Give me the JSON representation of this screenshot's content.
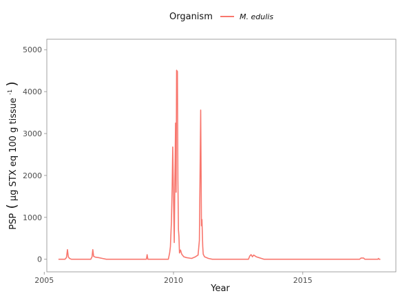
{
  "chart_data": {
    "type": "line",
    "xlabel": "Year",
    "ylabel": "PSP (µg STX eq 100 g tissue⁻¹)",
    "ylabel_main": "PSP",
    "ylabel_unit": "µg STX eq 100 g tissue",
    "ylabel_exp": "-1",
    "xlim": [
      2005.1,
      2018.6
    ],
    "ylim": [
      -300,
      5250
    ],
    "x_ticks": [
      2005,
      2010,
      2015
    ],
    "y_ticks": [
      0,
      1000,
      2000,
      3000,
      4000,
      5000
    ],
    "grid": false,
    "legend": {
      "title": "Organism",
      "position": "top"
    },
    "series": [
      {
        "name": "M. edulis",
        "color": "#F8766D",
        "points": [
          [
            2005.55,
            0
          ],
          [
            2005.8,
            0
          ],
          [
            2005.86,
            40
          ],
          [
            2005.9,
            230
          ],
          [
            2005.93,
            60
          ],
          [
            2005.98,
            20
          ],
          [
            2006.05,
            0
          ],
          [
            2006.8,
            0
          ],
          [
            2006.85,
            60
          ],
          [
            2006.88,
            230
          ],
          [
            2006.91,
            70
          ],
          [
            2006.98,
            50
          ],
          [
            2007.1,
            40
          ],
          [
            2007.25,
            20
          ],
          [
            2007.4,
            0
          ],
          [
            2008.95,
            0
          ],
          [
            2008.98,
            110
          ],
          [
            2009.01,
            0
          ],
          [
            2009.8,
            0
          ],
          [
            2009.85,
            150
          ],
          [
            2009.88,
            300
          ],
          [
            2009.92,
            900
          ],
          [
            2009.95,
            1750
          ],
          [
            2009.97,
            2680
          ],
          [
            2010.0,
            1500
          ],
          [
            2010.03,
            400
          ],
          [
            2010.05,
            1700
          ],
          [
            2010.08,
            3250
          ],
          [
            2010.1,
            1600
          ],
          [
            2010.12,
            4510
          ],
          [
            2010.15,
            4480
          ],
          [
            2010.17,
            1900
          ],
          [
            2010.19,
            700
          ],
          [
            2010.21,
            550
          ],
          [
            2010.23,
            150
          ],
          [
            2010.27,
            220
          ],
          [
            2010.32,
            120
          ],
          [
            2010.4,
            60
          ],
          [
            2010.5,
            40
          ],
          [
            2010.7,
            20
          ],
          [
            2010.85,
            60
          ],
          [
            2010.95,
            100
          ],
          [
            2011.0,
            450
          ],
          [
            2011.05,
            3560
          ],
          [
            2011.08,
            800
          ],
          [
            2011.1,
            950
          ],
          [
            2011.13,
            300
          ],
          [
            2011.15,
            120
          ],
          [
            2011.2,
            60
          ],
          [
            2011.35,
            20
          ],
          [
            2011.5,
            0
          ],
          [
            2012.9,
            0
          ],
          [
            2012.95,
            80
          ],
          [
            2013.0,
            110
          ],
          [
            2013.05,
            60
          ],
          [
            2013.1,
            100
          ],
          [
            2013.2,
            60
          ],
          [
            2013.3,
            40
          ],
          [
            2013.4,
            20
          ],
          [
            2013.5,
            0
          ],
          [
            2017.2,
            0
          ],
          [
            2017.25,
            30
          ],
          [
            2017.35,
            30
          ],
          [
            2017.4,
            0
          ],
          [
            2017.9,
            0
          ],
          [
            2017.93,
            20
          ],
          [
            2017.95,
            0
          ],
          [
            2018.0,
            0
          ]
        ]
      }
    ]
  }
}
